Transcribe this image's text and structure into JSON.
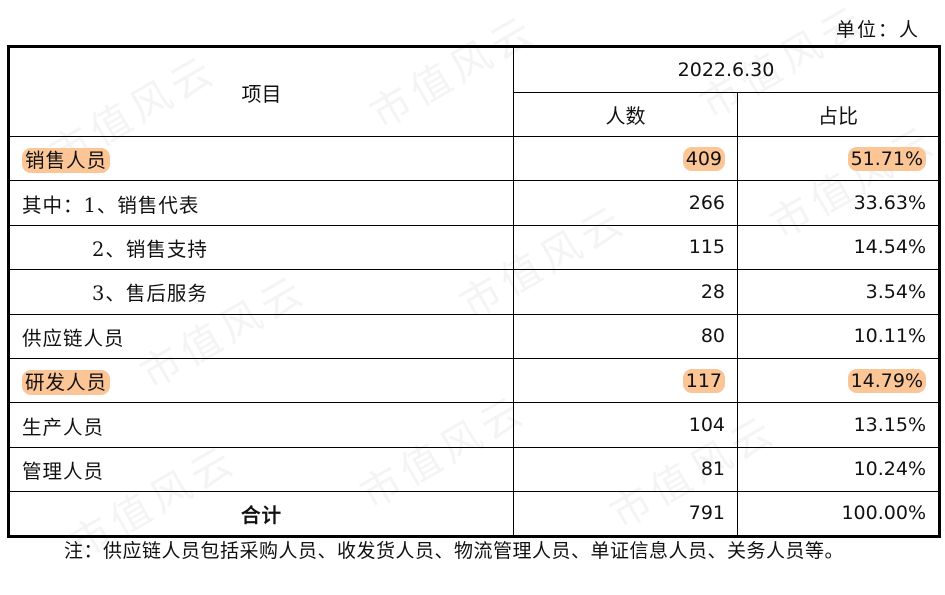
{
  "unit_label": "单位：人",
  "watermark_text": "市值风云",
  "highlight_color": "#fbc596",
  "table": {
    "header_item": "项目",
    "header_date": "2022.6.30",
    "header_count": "人数",
    "header_ratio": "占比",
    "rows": [
      {
        "label": "销售人员",
        "count": "409",
        "ratio": "51.71%",
        "highlight": true
      },
      {
        "label": "其中：1、销售代表",
        "count": "266",
        "ratio": "33.63%",
        "highlight": false
      },
      {
        "label": "2、销售支持",
        "count": "115",
        "ratio": "14.54%",
        "highlight": false
      },
      {
        "label": "3、售后服务",
        "count": "28",
        "ratio": "3.54%",
        "highlight": false
      },
      {
        "label": "供应链人员",
        "count": "80",
        "ratio": "10.11%",
        "highlight": false
      },
      {
        "label": "研发人员",
        "count": "117",
        "ratio": "14.79%",
        "highlight": true
      },
      {
        "label": "生产人员",
        "count": "104",
        "ratio": "13.15%",
        "highlight": false
      },
      {
        "label": "管理人员",
        "count": "81",
        "ratio": "10.24%",
        "highlight": false
      }
    ],
    "total": {
      "label": "合计",
      "count": "791",
      "ratio": "100.00%"
    }
  },
  "note": "注：供应链人员包括采购人员、收发货人员、物流管理人员、单证信息人员、关务人员等。"
}
